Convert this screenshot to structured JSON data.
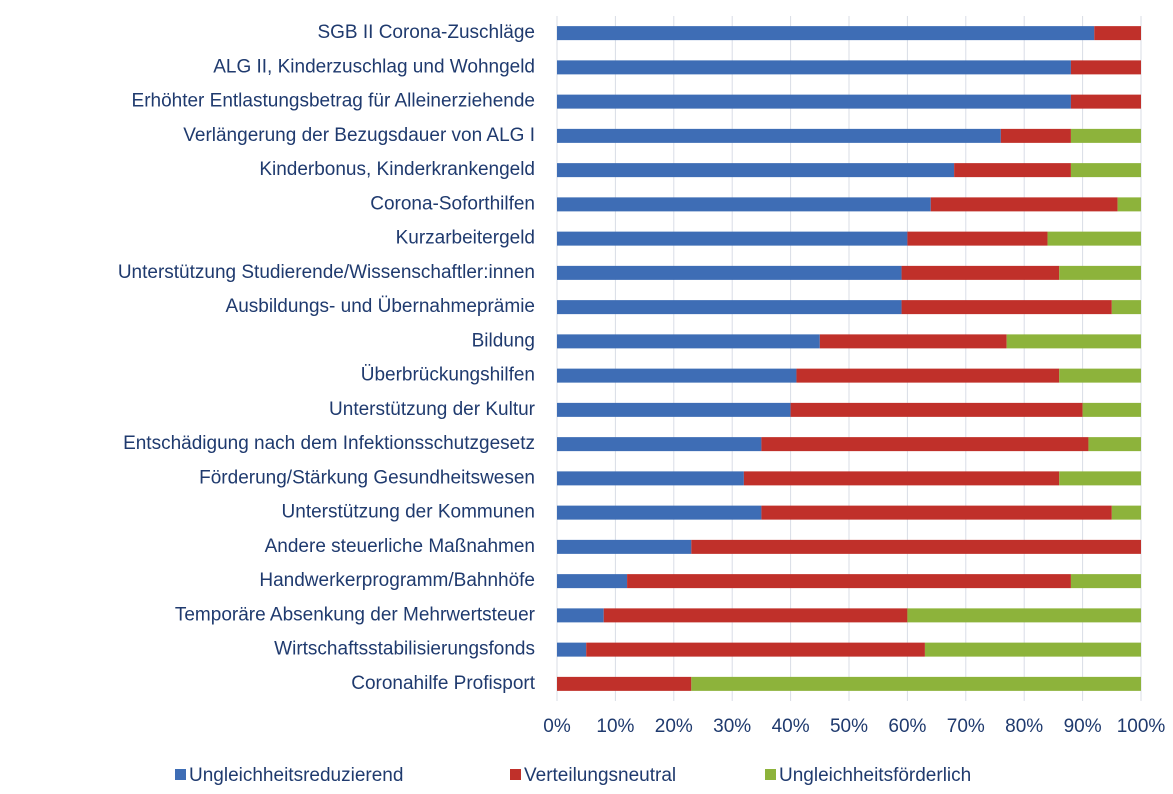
{
  "chart_data": {
    "type": "stacked-bar-horizontal",
    "categories": [
      "SGB II Corona-Zuschläge",
      "ALG II, Kinderzuschlag und Wohngeld",
      "Erhöhter Entlastungsbetrag für Alleinerziehende",
      "Verlängerung der Bezugsdauer von ALG I",
      "Kinderbonus, Kinderkrankengeld",
      "Corona-Soforthilfen ",
      "Kurzarbeitergeld",
      "Unterstützung Studierende/Wissenschaftler:innen",
      "Ausbildungs- und Übernahmeprämie",
      "Bildung",
      "Überbrückungshilfen",
      "Unterstützung der Kultur",
      "Entschädigung nach dem Infektionsschutzgesetz",
      "Förderung/Stärkung Gesundheitswesen",
      "Unterstützung der Kommunen",
      "Andere steuerliche Maßnahmen",
      "Handwerkerprogramm/Bahnhöfe",
      "Temporäre Absenkung der Mehrwertsteuer",
      "Wirtschaftsstabilisierungsfonds",
      "Coronahilfe Profisport"
    ],
    "series": [
      {
        "name": "Ungleichheitsreduzierend",
        "color": "#3e6db5",
        "values": [
          92,
          88,
          88,
          76,
          68,
          64,
          60,
          59,
          59,
          45,
          41,
          40,
          35,
          32,
          35,
          23,
          12,
          8,
          5,
          0
        ]
      },
      {
        "name": "Verteilungsneutral",
        "color": "#c0302a",
        "values": [
          8,
          12,
          12,
          12,
          20,
          32,
          24,
          27,
          36,
          32,
          45,
          50,
          56,
          54,
          60,
          77,
          76,
          52,
          58,
          23
        ]
      },
      {
        "name": "Ungleichheitsförderlich",
        "color": "#8db33b",
        "values": [
          0,
          0,
          0,
          12,
          12,
          4,
          16,
          14,
          5,
          23,
          14,
          10,
          9,
          14,
          5,
          0,
          12,
          40,
          37,
          77
        ]
      }
    ],
    "xlim": [
      0,
      100
    ],
    "xticks": [
      {
        "value": 0,
        "label": "0%"
      },
      {
        "value": 10,
        "label": "10%"
      },
      {
        "value": 20,
        "label": "20%"
      },
      {
        "value": 30,
        "label": "30%"
      },
      {
        "value": 40,
        "label": "40%"
      },
      {
        "value": 50,
        "label": "50%"
      },
      {
        "value": 60,
        "label": "60%"
      },
      {
        "value": 70,
        "label": "70%"
      },
      {
        "value": 80,
        "label": "80%"
      },
      {
        "value": 90,
        "label": "90%"
      },
      {
        "value": 100,
        "label": "100%"
      }
    ],
    "grid": true,
    "legend": "bottom"
  }
}
